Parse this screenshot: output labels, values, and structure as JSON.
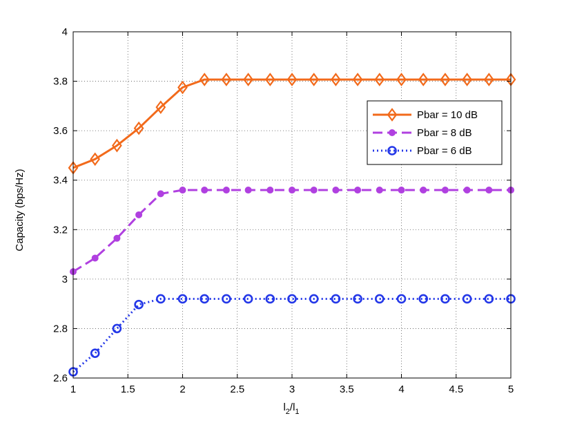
{
  "chart_data": {
    "type": "line",
    "xlabel": "l2/l1",
    "xlabel_main": "l",
    "xlabel_sub1": "2",
    "xlabel_sep": "/l",
    "xlabel_sub2": "1",
    "ylabel": "Capacity (bps/Hz)",
    "xlim": [
      1,
      5
    ],
    "ylim": [
      2.6,
      4
    ],
    "xticks": [
      1,
      1.5,
      2,
      2.5,
      3,
      3.5,
      4,
      4.5,
      5
    ],
    "yticks": [
      2.6,
      2.8,
      3,
      3.2,
      3.4,
      3.6,
      3.8,
      4
    ],
    "xtick_labels": [
      "1",
      "1.5",
      "2",
      "2.5",
      "3",
      "3.5",
      "4",
      "4.5",
      "5"
    ],
    "ytick_labels": [
      "2.6",
      "2.8",
      "3",
      "3.2",
      "3.4",
      "3.6",
      "3.8",
      "4"
    ],
    "grid": true,
    "legend_position": "upper-right",
    "x": [
      1,
      1.2,
      1.4,
      1.6,
      1.8,
      2,
      2.2,
      2.4,
      2.6,
      2.8,
      3,
      3.2,
      3.4,
      3.6,
      3.8,
      4,
      4.2,
      4.4,
      4.6,
      4.8,
      5
    ],
    "series": [
      {
        "name": "Pbar = 10 dB",
        "color": "#f26a1b",
        "line_style": "solid",
        "marker": "diamond",
        "values": [
          3.45,
          3.485,
          3.54,
          3.61,
          3.695,
          3.775,
          3.807,
          3.807,
          3.807,
          3.807,
          3.807,
          3.807,
          3.807,
          3.807,
          3.807,
          3.807,
          3.807,
          3.807,
          3.807,
          3.807,
          3.807
        ]
      },
      {
        "name": "Pbar = 8 dB",
        "color": "#b040e0",
        "line_style": "dashed",
        "marker": "filled-circle",
        "values": [
          3.03,
          3.085,
          3.165,
          3.26,
          3.345,
          3.36,
          3.36,
          3.36,
          3.36,
          3.36,
          3.36,
          3.36,
          3.36,
          3.36,
          3.36,
          3.36,
          3.36,
          3.36,
          3.36,
          3.36,
          3.36
        ]
      },
      {
        "name": "Pbar = 6 dB",
        "color": "#2438e8",
        "line_style": "dotted",
        "marker": "open-circle",
        "values": [
          2.625,
          2.7,
          2.8,
          2.897,
          2.92,
          2.92,
          2.92,
          2.92,
          2.92,
          2.92,
          2.92,
          2.92,
          2.92,
          2.92,
          2.92,
          2.92,
          2.92,
          2.92,
          2.92,
          2.92,
          2.92
        ]
      }
    ]
  }
}
